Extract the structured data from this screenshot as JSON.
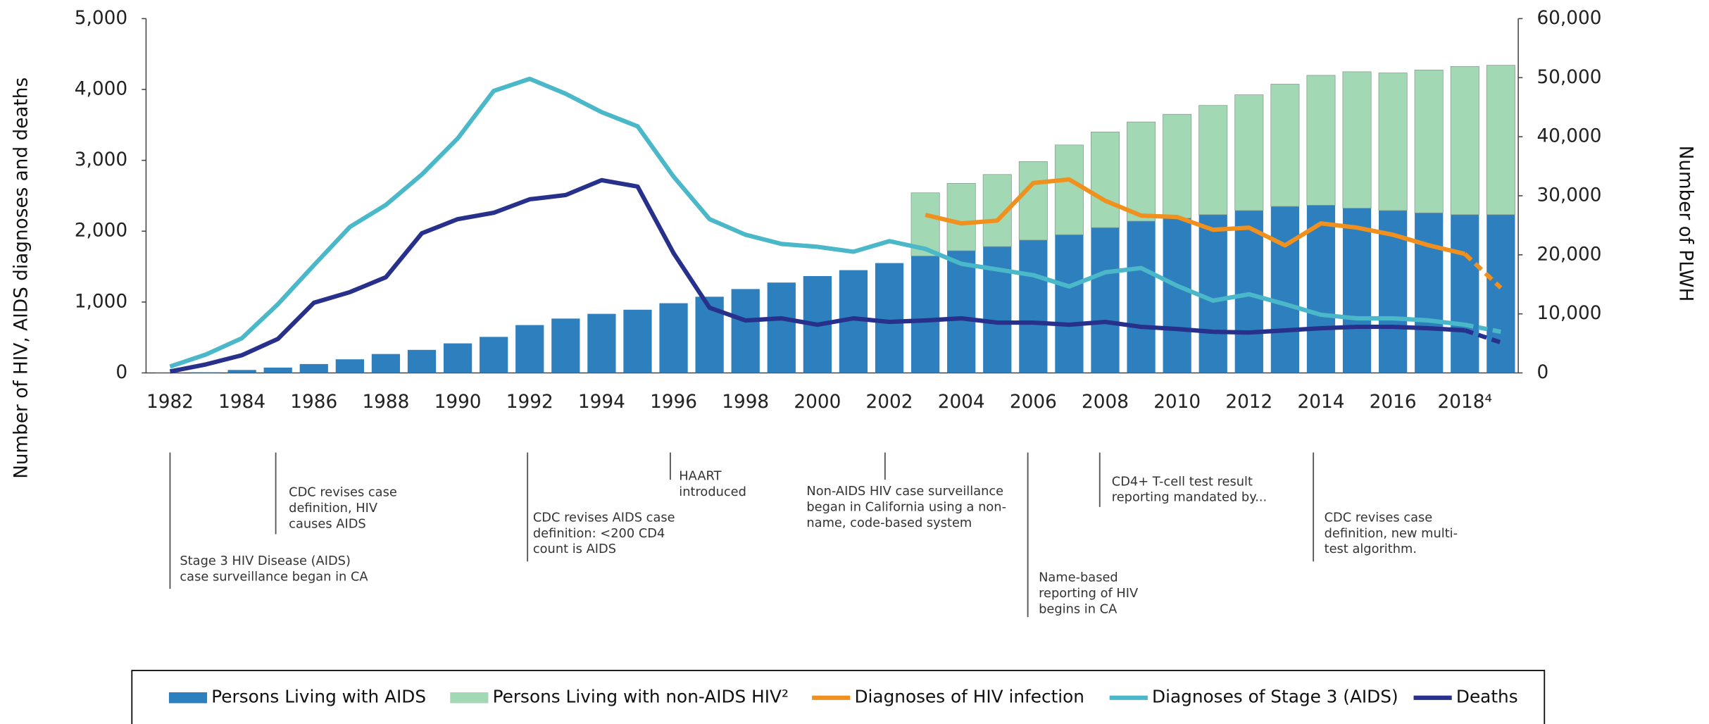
{
  "chart_data": {
    "type": "combo",
    "ylabel": "Number of HIV, AIDS diagnoses and deaths",
    "y2label": "Number of PLWH",
    "categories": [
      "1982",
      null,
      "1984",
      null,
      "1986",
      null,
      "1988",
      null,
      "1990",
      null,
      "1992",
      null,
      "1994",
      null,
      "1996",
      null,
      "1998",
      null,
      "2000",
      null,
      "2002",
      null,
      "2004",
      null,
      "2006",
      null,
      "2008",
      null,
      "2010",
      null,
      "2012",
      null,
      "2014",
      null,
      "2016",
      null,
      "2018⁴",
      null
    ],
    "ylim": [
      0,
      5000
    ],
    "yticks": [
      0,
      {
        "value": 1000,
        "label": "1,000"
      },
      {
        "value": 2000,
        "label": "2,000"
      },
      {
        "value": 3000,
        "label": "3,000"
      },
      {
        "value": 4000,
        "label": "4,000"
      },
      {
        "value": 5000,
        "label": "5,000"
      }
    ],
    "y2lim": [
      0,
      60000
    ],
    "y2ticks": [
      0,
      {
        "value": 10000,
        "label": "10,000"
      },
      {
        "value": 20000,
        "label": "20,000"
      },
      {
        "value": 30000,
        "label": "30,000"
      },
      {
        "value": 40000,
        "label": "40,000"
      },
      {
        "value": 50000,
        "label": "50,000"
      },
      {
        "value": 60000,
        "label": "60,000"
      }
    ],
    "series": [
      {
        "name": "Persons Living with AIDS",
        "type": "bar",
        "axis": "y2",
        "color": "#2e7fbd",
        "values": [
          50,
          100,
          500,
          900,
          1500,
          2300,
          3200,
          3900,
          5000,
          6100,
          8100,
          9200,
          10000,
          10700,
          11800,
          12900,
          14200,
          15300,
          16400,
          17400,
          18600,
          19800,
          20700,
          21400,
          22500,
          23400,
          24600,
          25700,
          26200,
          26800,
          27500,
          28200,
          28400,
          27900,
          27500,
          27100,
          26800,
          26800
        ]
      },
      {
        "name": "Persons Living with non-AIDS HIV²",
        "type": "bar",
        "axis": "y2",
        "color": "#a2d9b4",
        "values": [
          null,
          null,
          null,
          null,
          null,
          null,
          null,
          null,
          null,
          null,
          null,
          null,
          null,
          null,
          null,
          null,
          null,
          null,
          null,
          null,
          null,
          10700,
          11400,
          12200,
          13300,
          15200,
          16200,
          16800,
          17600,
          18500,
          19600,
          20700,
          22000,
          23100,
          23300,
          24200,
          25100,
          25300
        ]
      },
      {
        "name": "Diagnoses of HIV infection",
        "type": "line",
        "color": "#f0901e",
        "dashed_from_index": 36,
        "values": [
          null,
          null,
          null,
          null,
          null,
          null,
          null,
          null,
          null,
          null,
          null,
          null,
          null,
          null,
          null,
          null,
          null,
          null,
          null,
          null,
          null,
          2230,
          2110,
          2150,
          2680,
          2730,
          2430,
          2220,
          2200,
          2020,
          2050,
          1800,
          2110,
          2050,
          1950,
          1800,
          1680,
          1200
        ]
      },
      {
        "name": "Diagnoses of Stage 3 (AIDS)",
        "type": "line",
        "color": "#4ab8c8",
        "dashed_from_index": 36,
        "values": [
          90,
          260,
          490,
          970,
          1520,
          2060,
          2370,
          2800,
          3310,
          3980,
          4150,
          3940,
          3680,
          3480,
          2770,
          2170,
          1950,
          1820,
          1780,
          1710,
          1860,
          1750,
          1540,
          1460,
          1380,
          1220,
          1420,
          1480,
          1230,
          1020,
          1110,
          970,
          820,
          770,
          770,
          740,
          680,
          580
        ]
      },
      {
        "name": "Deaths",
        "type": "line",
        "color": "#27318b",
        "dashed_from_index": 36,
        "values": [
          20,
          120,
          250,
          480,
          990,
          1140,
          1350,
          1970,
          2170,
          2260,
          2450,
          2510,
          2720,
          2630,
          1690,
          920,
          740,
          770,
          680,
          770,
          720,
          740,
          770,
          710,
          710,
          680,
          720,
          650,
          620,
          580,
          570,
          600,
          630,
          650,
          650,
          630,
          600,
          430
        ]
      }
    ],
    "annotations": [
      {
        "lines": [
          "Stage 3 HIV Disease (AIDS)",
          "case surveillance began in CA"
        ]
      },
      {
        "lines": [
          "CDC revises case",
          "definition, HIV",
          "causes AIDS"
        ]
      },
      {
        "lines": [
          "CDC revises AIDS case",
          "definition: <200 CD4",
          "count is AIDS"
        ]
      },
      {
        "lines": [
          "HAART",
          "introduced"
        ]
      },
      {
        "lines": [
          "Non-AIDS HIV case surveillance",
          "began in California using a non-",
          "name, code-based system"
        ]
      },
      {
        "lines": [
          "Name-based",
          "reporting of HIV",
          "begins in CA"
        ]
      },
      {
        "lines": [
          "CD4+ T-cell test result",
          "reporting mandated by..."
        ]
      },
      {
        "lines": [
          "CDC revises case",
          "definition, new multi-",
          "test algorithm."
        ]
      }
    ]
  }
}
